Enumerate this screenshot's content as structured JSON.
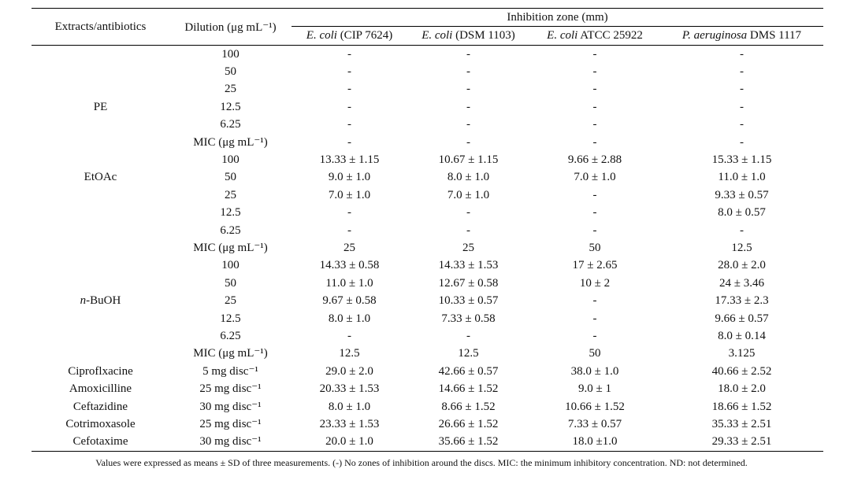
{
  "header": {
    "extracts": "Extracts/antibiotics",
    "dilution": "Dilution (μg mL⁻¹)",
    "group": "Inhibition zone (mm)"
  },
  "columns": [
    {
      "italic": "E. coli",
      "text": " (CIP 7624)"
    },
    {
      "italic": "E. coli",
      "text": " (DSM 1103)"
    },
    {
      "italic": "E. coli",
      "text": " ATCC 25922"
    },
    {
      "italic": "P. aeruginosa",
      "text": " DMS 1117"
    }
  ],
  "table": {
    "rows": [
      [
        null,
        "100",
        "-",
        "-",
        "-",
        "-"
      ],
      [
        null,
        "50",
        "-",
        "-",
        "-",
        "-"
      ],
      [
        null,
        "25",
        "-",
        "-",
        "-",
        "-"
      ],
      [
        "PE",
        "12.5",
        "-",
        "-",
        "-",
        "-"
      ],
      [
        null,
        "6.25",
        "-",
        "-",
        "-",
        "-"
      ],
      [
        null,
        "MIC (μg mL⁻¹)",
        "-",
        "-",
        "-",
        "-"
      ],
      [
        null,
        "100",
        "13.33 ± 1.15",
        "10.67 ± 1.15",
        "9.66 ± 2.88",
        "15.33 ± 1.15"
      ],
      [
        "EtOAc",
        "50",
        "9.0 ± 1.0",
        "8.0 ± 1.0",
        "7.0 ± 1.0",
        "11.0 ± 1.0"
      ],
      [
        null,
        "25",
        "7.0 ± 1.0",
        "7.0 ± 1.0",
        "-",
        "9.33 ± 0.57"
      ],
      [
        null,
        "12.5",
        "-",
        "-",
        "-",
        "8.0 ± 0.57"
      ],
      [
        null,
        "6.25",
        "-",
        "-",
        "-",
        "-"
      ],
      [
        null,
        "MIC (μg mL⁻¹)",
        "25",
        "25",
        "50",
        "12.5"
      ],
      [
        null,
        "100",
        "14.33 ± 0.58",
        "14.33 ± 1.53",
        "17 ± 2.65",
        "28.0 ± 2.0"
      ],
      [
        null,
        "50",
        "11.0 ± 1.0",
        "12.67 ± 0.58",
        "10 ± 2",
        "24 ± 3.46"
      ],
      [
        {
          "italic": "n",
          "text": "-BuOH"
        },
        "25",
        "9.67 ± 0.58",
        "10.33 ± 0.57",
        "-",
        "17.33 ± 2.3"
      ],
      [
        null,
        "12.5",
        "8.0 ± 1.0",
        "7.33 ± 0.58",
        "-",
        "9.66 ± 0.57"
      ],
      [
        null,
        "6.25",
        "-",
        "-",
        "-",
        "8.0 ± 0.14"
      ],
      [
        null,
        "MIC (μg mL⁻¹)",
        "12.5",
        "12.5",
        "50",
        "3.125"
      ],
      [
        "Ciproflxacine",
        "5 mg disc⁻¹",
        "29.0 ± 2.0",
        "42.66 ± 0.57",
        "38.0 ± 1.0",
        "40.66 ± 2.52"
      ],
      [
        "Amoxicilline",
        "25 mg disc⁻¹",
        "20.33 ± 1.53",
        "14.66 ± 1.52",
        "9.0 ± 1",
        "18.0 ± 2.0"
      ],
      [
        "Ceftazidine",
        "30 mg disc⁻¹",
        "8.0 ± 1.0",
        "8.66 ± 1.52",
        "10.66 ± 1.52",
        "18.66 ± 1.52"
      ],
      [
        "Cotrimoxasole",
        "25 mg disc⁻¹",
        "23.33 ± 1.53",
        "26.66 ± 1.52",
        "7.33 ± 0.57",
        "35.33 ± 2.51"
      ],
      [
        "Cefotaxime",
        "30 mg disc⁻¹",
        "20.0 ± 1.0",
        "35.66 ± 1.52",
        "18.0 ±1.0",
        "29.33 ± 2.51"
      ]
    ]
  },
  "footnote": "Values were expressed as means ± SD of three measurements. (-) No zones of inhibition around the discs. MIC: the minimum inhibitory concentration. ND: not determined."
}
